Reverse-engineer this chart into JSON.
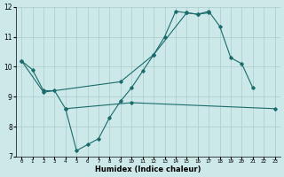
{
  "background_color": "#cce8e8",
  "grid_color": "#aacccc",
  "line_color": "#1a6b6b",
  "xlabel": "Humidex (Indice chaleur)",
  "xlim": [
    -0.5,
    23.5
  ],
  "ylim": [
    7,
    12
  ],
  "xticks": [
    0,
    1,
    2,
    3,
    4,
    5,
    6,
    7,
    8,
    9,
    10,
    11,
    12,
    13,
    14,
    15,
    16,
    17,
    18,
    19,
    20,
    21,
    22,
    23
  ],
  "yticks": [
    7,
    8,
    9,
    10,
    11,
    12
  ],
  "series": [
    {
      "x": [
        0,
        1,
        2,
        3,
        4,
        5,
        6,
        7,
        8,
        9,
        10,
        11,
        12,
        13,
        14,
        15,
        16,
        17,
        18,
        19,
        20,
        21
      ],
      "y": [
        10.2,
        9.9,
        9.2,
        9.2,
        8.6,
        7.2,
        7.4,
        7.6,
        8.3,
        8.85,
        9.3,
        9.85,
        10.4,
        11.0,
        11.85,
        11.8,
        11.75,
        11.85,
        11.35,
        10.3,
        10.1,
        9.3
      ]
    },
    {
      "x": [
        4,
        10,
        23
      ],
      "y": [
        8.6,
        8.8,
        8.6
      ]
    },
    {
      "x": [
        0,
        2,
        9,
        12,
        15,
        16,
        17
      ],
      "y": [
        10.2,
        9.15,
        9.5,
        10.4,
        11.8,
        11.75,
        11.8
      ]
    }
  ]
}
